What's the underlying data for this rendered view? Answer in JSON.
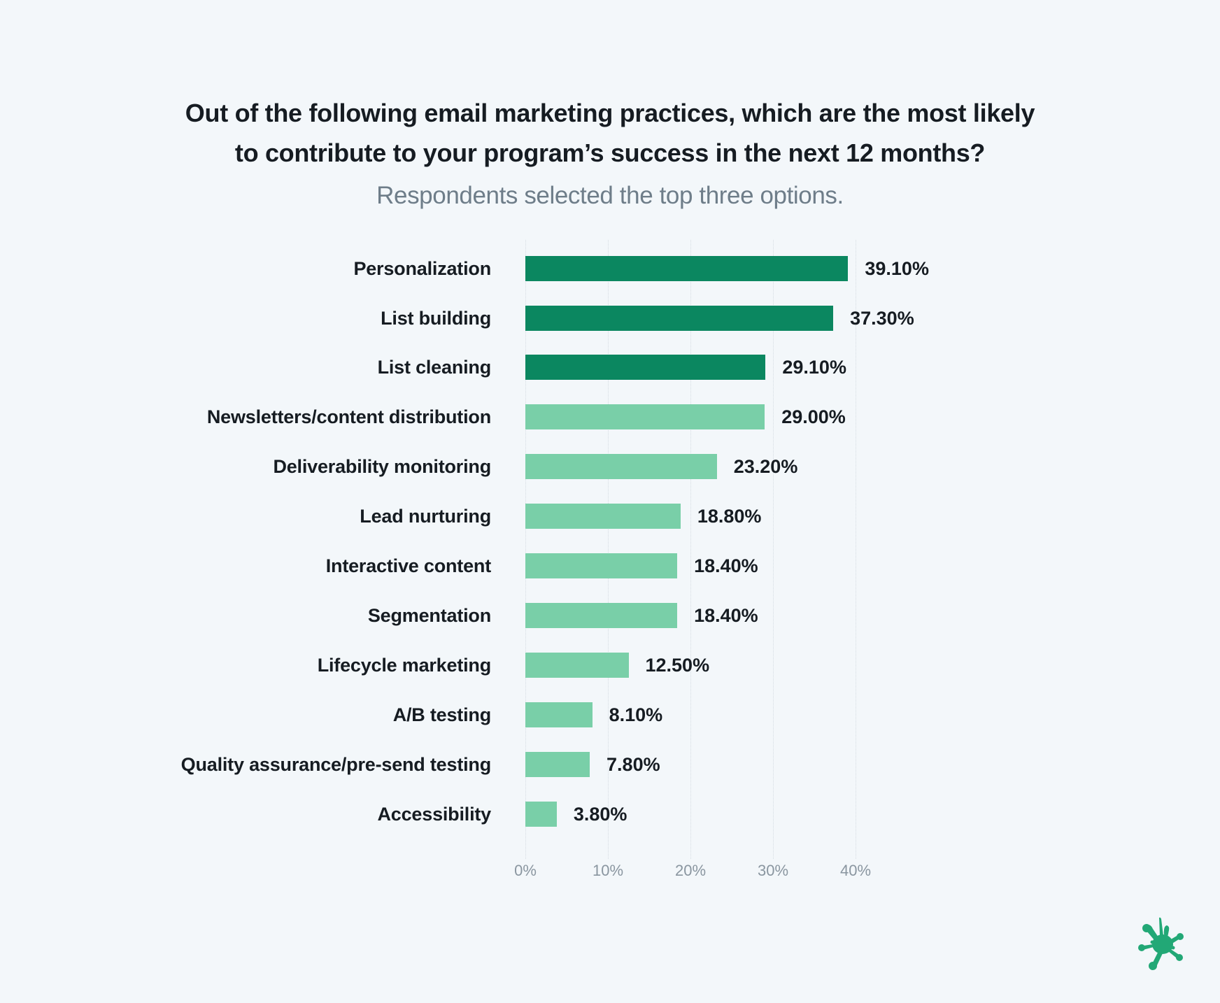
{
  "title": {
    "line1": "Out of the following email marketing practices, which are the most likely",
    "line2": "to contribute to your program’s success in the next 12 months?"
  },
  "subtitle": "Respondents selected the top three options.",
  "colors": {
    "background": "#F3F7FA",
    "highlight_bar": "#0B8760",
    "regular_bar": "#79CFA8",
    "text": "#161C22",
    "subtitle": "#6E7D89",
    "tick": "#8A96A0",
    "logo": "#22A876"
  },
  "axis": {
    "ticks": [
      "0%",
      "10%",
      "20%",
      "30%",
      "40%"
    ]
  },
  "rows": [
    {
      "label": "Personalization",
      "value": "39.10%"
    },
    {
      "label": "List building",
      "value": "37.30%"
    },
    {
      "label": "List cleaning",
      "value": "29.10%"
    },
    {
      "label": "Newsletters/content distribution",
      "value": "29.00%"
    },
    {
      "label": "Deliverability monitoring",
      "value": "23.20%"
    },
    {
      "label": "Lead nurturing",
      "value": "18.80%"
    },
    {
      "label": "Interactive content",
      "value": "18.40%"
    },
    {
      "label": "Segmentation",
      "value": "18.40%"
    },
    {
      "label": "Lifecycle marketing",
      "value": "12.50%"
    },
    {
      "label": "A/B testing",
      "value": "8.10%"
    },
    {
      "label": "Quality assurance/pre-send testing",
      "value": "7.80%"
    },
    {
      "label": "Accessibility",
      "value": "3.80%"
    }
  ],
  "logo": {
    "icon": "splat-icon"
  },
  "chart_data": {
    "type": "bar",
    "orientation": "horizontal",
    "title": "Out of the following email marketing practices, which are the most likely to contribute to your program’s success in the next 12 months?",
    "subtitle": "Respondents selected the top three options.",
    "categories": [
      "Personalization",
      "List building",
      "List cleaning",
      "Newsletters/content distribution",
      "Deliverability monitoring",
      "Lead nurturing",
      "Interactive content",
      "Segmentation",
      "Lifecycle marketing",
      "A/B testing",
      "Quality assurance/pre-send testing",
      "Accessibility"
    ],
    "values": [
      39.1,
      37.3,
      29.1,
      29.0,
      23.2,
      18.8,
      18.4,
      18.4,
      12.5,
      8.1,
      7.8,
      3.8
    ],
    "data_labels": [
      "39.10%",
      "37.30%",
      "29.10%",
      "29.00%",
      "23.20%",
      "18.80%",
      "18.40%",
      "18.40%",
      "12.50%",
      "8.10%",
      "7.80%",
      "3.80%"
    ],
    "highlighted": [
      true,
      true,
      true,
      false,
      false,
      false,
      false,
      false,
      false,
      false,
      false,
      false
    ],
    "xlabel": "",
    "ylabel": "",
    "xlim": [
      0,
      40
    ],
    "xticks": [
      "0%",
      "10%",
      "20%",
      "30%",
      "40%"
    ],
    "grid": "vertical dotted",
    "legend": "none"
  }
}
